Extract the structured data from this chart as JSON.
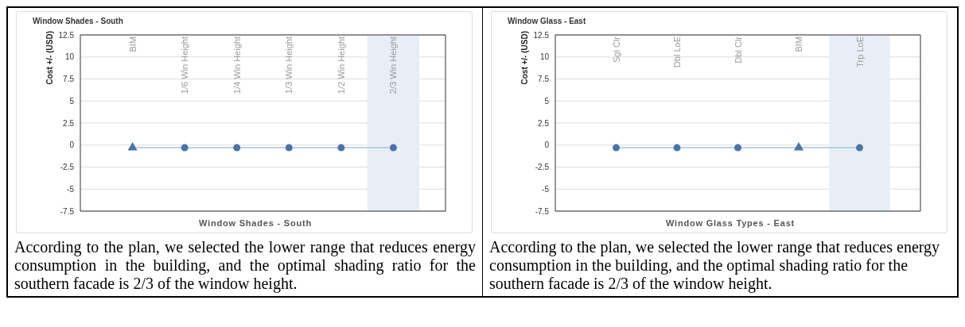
{
  "chart_data": [
    {
      "type": "line",
      "title": "Window Shades - South",
      "xlabel": "Window Shades - South",
      "ylabel": "Cost +/- (USD)",
      "categories": [
        "BIM",
        "1/6 Win Height",
        "1/4 Win Height",
        "1/3 Win Height",
        "1/2 Win Height",
        "2/3 Win Height"
      ],
      "series": [
        {
          "type": "line",
          "color": "#a9c3df",
          "values": [
            -0.3,
            -0.3,
            -0.3,
            -0.3,
            -0.3,
            -0.3
          ],
          "marker": "none"
        },
        {
          "type": "scatter",
          "color": "#4a74a5",
          "values": [
            null,
            -0.3,
            -0.3,
            -0.3,
            -0.3,
            -0.3
          ],
          "marker": "circle"
        },
        {
          "type": "scatter",
          "color": "#4a74a5",
          "values": [
            -0.3,
            null,
            null,
            null,
            null,
            null
          ],
          "marker": "triangle"
        }
      ],
      "ylim": [
        -7.5,
        12.5
      ],
      "yticks": [
        -7.5,
        -5,
        -2.5,
        0,
        2.5,
        5,
        7.5,
        10,
        12.5
      ],
      "grid": "y",
      "bands": [
        {
          "axis": "x",
          "from": "2/3 Win Height",
          "to": "2/3 Win Height",
          "color": "#e8eef6"
        }
      ],
      "annotations": [
        "According to the plan, we selected the lower range that reduces energy consumption in the building, and the optimal shading ratio for the southern facade is 2/3 of the window height."
      ]
    },
    {
      "type": "line",
      "title": "Window Glass - East",
      "xlabel": "Window Glass Types - East",
      "ylabel": "Cost +/- (USD)",
      "categories": [
        "Sgl Clr",
        "Dbl LoE",
        "Dbl Clr",
        "BIM",
        "Trp LoE"
      ],
      "series": [
        {
          "type": "line",
          "color": "#a9c3df",
          "values": [
            -0.3,
            -0.3,
            -0.3,
            -0.3,
            -0.3
          ],
          "marker": "none"
        },
        {
          "type": "scatter",
          "color": "#4a74a5",
          "values": [
            -0.3,
            -0.3,
            -0.3,
            null,
            -0.3
          ],
          "marker": "circle"
        },
        {
          "type": "scatter",
          "color": "#4a74a5",
          "values": [
            null,
            null,
            null,
            -0.3,
            null
          ],
          "marker": "triangle"
        }
      ],
      "ylim": [
        -7.5,
        12.5
      ],
      "yticks": [
        -7.5,
        -5,
        -2.5,
        0,
        2.5,
        5,
        7.5,
        10,
        12.5
      ],
      "grid": "y",
      "bands": [
        {
          "axis": "x",
          "from": "Trp LoE",
          "to": "Trp LoE",
          "color": "#e8eef6"
        }
      ],
      "annotations": [
        "According to the plan, we selected the lower range that reduces energy consumption in the building, and the optimal shading ratio for the southern facade is 2/3 of the window height."
      ]
    }
  ]
}
